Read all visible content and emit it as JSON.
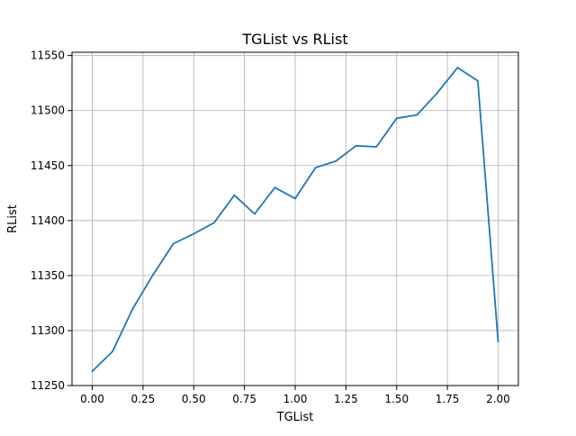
{
  "chart_data": {
    "type": "line",
    "title": "TGList vs RList",
    "xlabel": "TGList",
    "ylabel": "RList",
    "xlim": [
      -0.1,
      2.1
    ],
    "ylim": [
      11250,
      11553
    ],
    "x_ticks": [
      0.0,
      0.25,
      0.5,
      0.75,
      1.0,
      1.25,
      1.5,
      1.75,
      2.0
    ],
    "x_tick_labels": [
      "0.00",
      "0.25",
      "0.50",
      "0.75",
      "1.00",
      "1.25",
      "1.50",
      "1.75",
      "2.00"
    ],
    "y_ticks": [
      11250,
      11300,
      11350,
      11400,
      11450,
      11500,
      11550
    ],
    "y_tick_labels": [
      "11250",
      "11300",
      "11350",
      "11400",
      "11450",
      "11500",
      "11550"
    ],
    "grid": true,
    "series": [
      {
        "color": "#1f77b4",
        "x": [
          0.0,
          0.1,
          0.2,
          0.3,
          0.4,
          0.5,
          0.6,
          0.7,
          0.8,
          0.9,
          1.0,
          1.1,
          1.2,
          1.3,
          1.4,
          1.5,
          1.6,
          1.7,
          1.8,
          1.9,
          2.0
        ],
        "y": [
          11263,
          11281,
          11320,
          11351,
          11379,
          11388,
          11398,
          11423,
          11406,
          11430,
          11420,
          11448,
          11454,
          11468,
          11467,
          11493,
          11496,
          11516,
          11539,
          11527,
          11290
        ]
      }
    ]
  }
}
